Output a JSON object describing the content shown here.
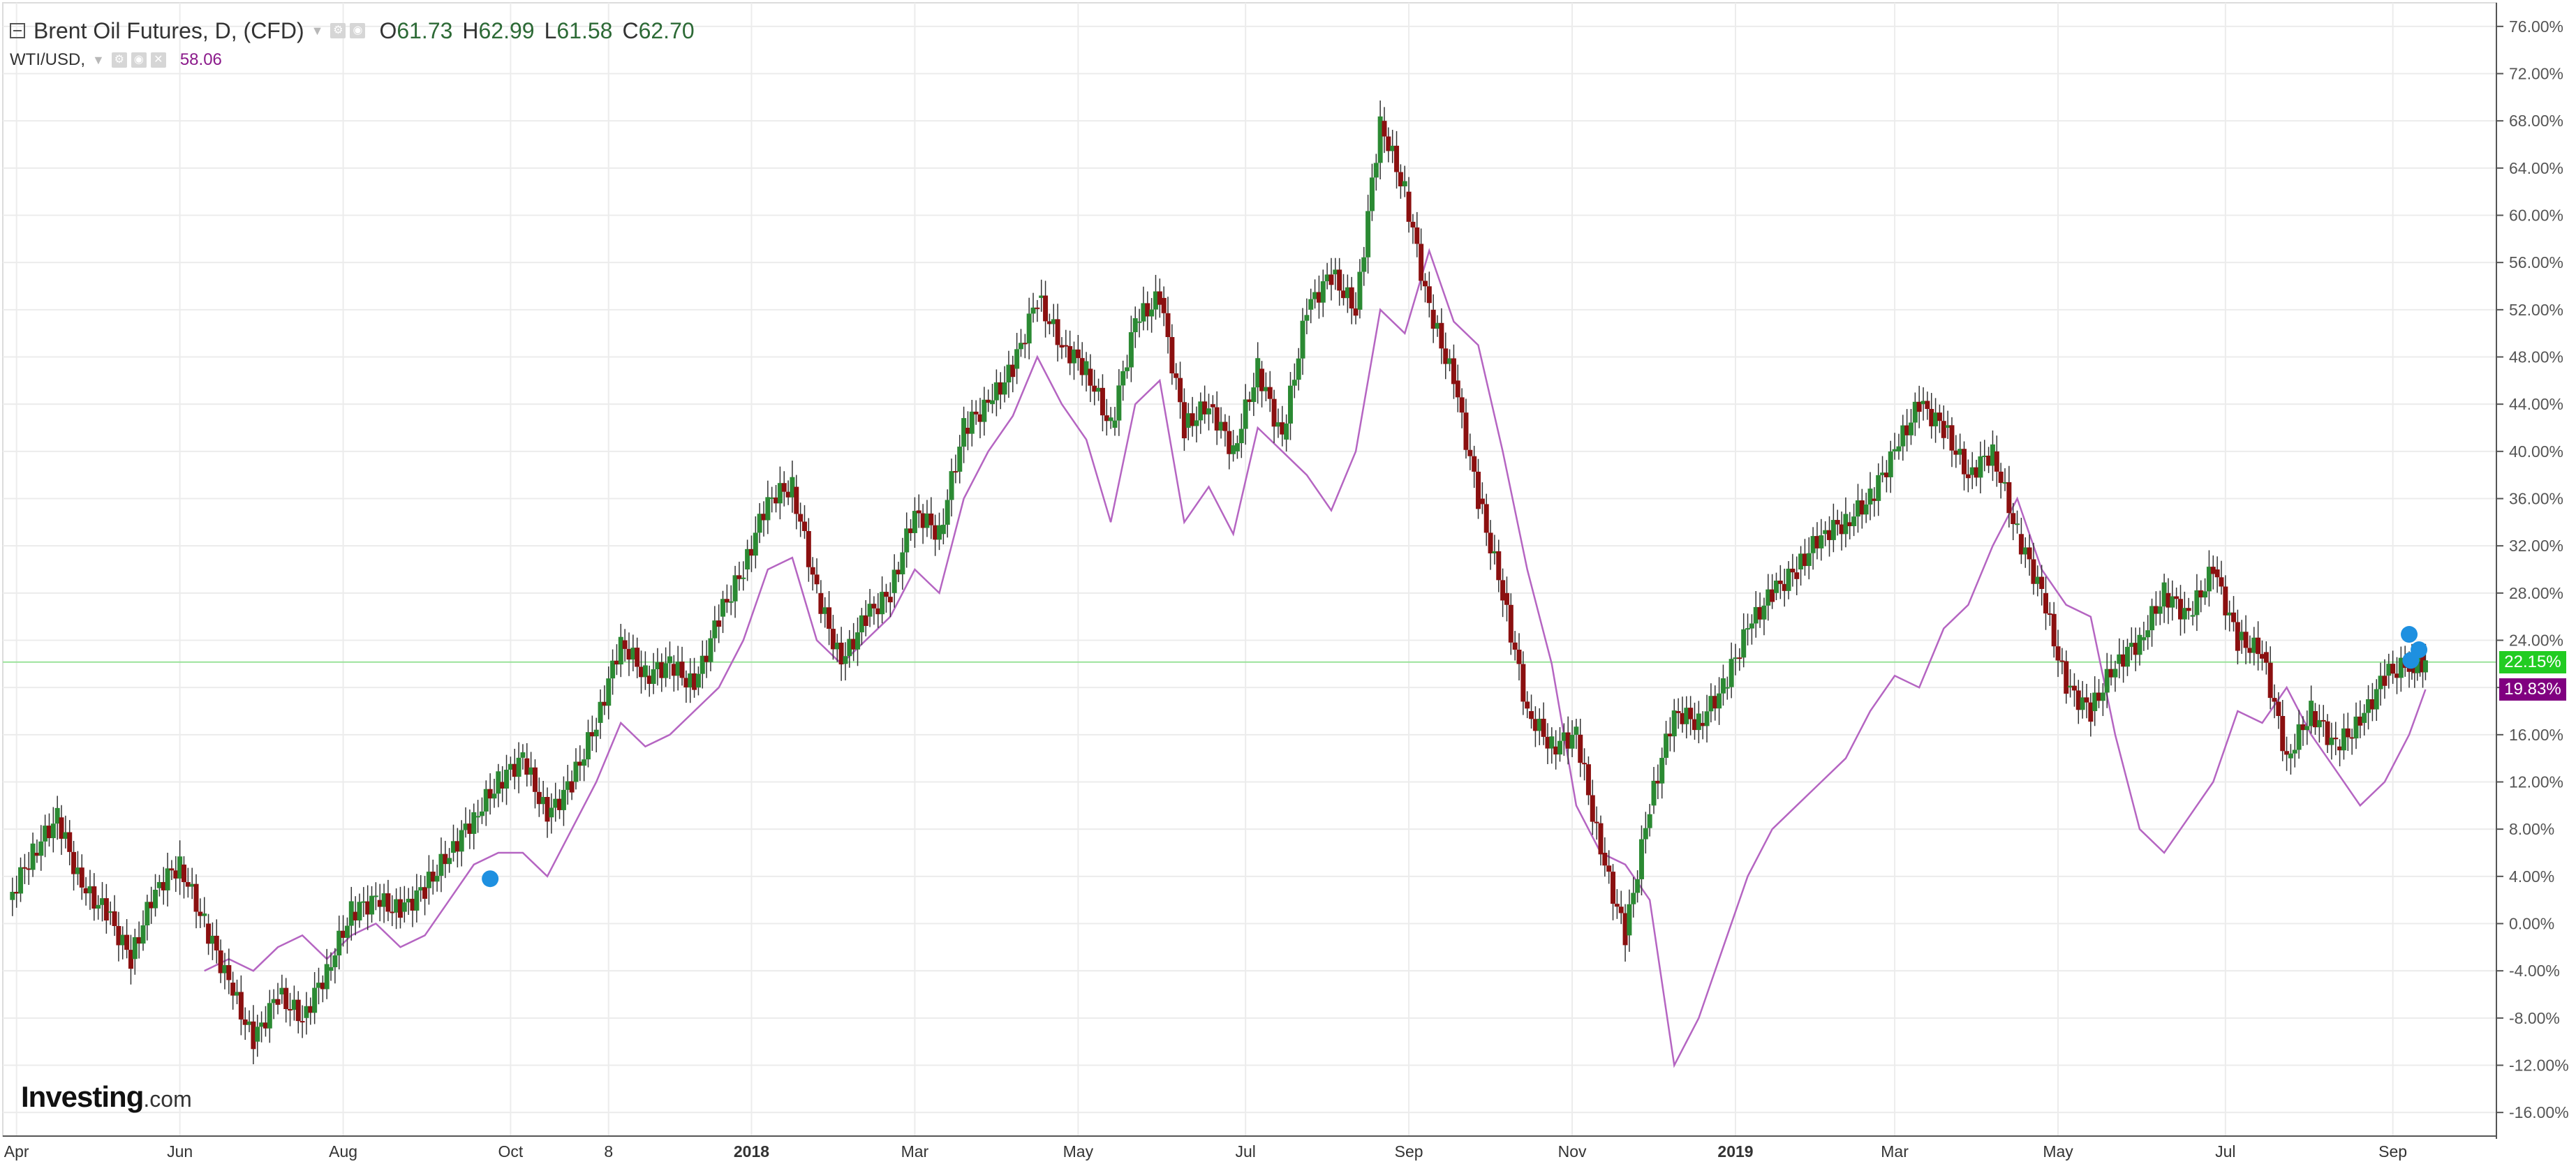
{
  "legend": {
    "main_title": "Brent Oil Futures, D, (CFD)",
    "open_label": "O",
    "open": "61.73",
    "high_label": "H",
    "high": "62.99",
    "low_label": "L",
    "low": "61.58",
    "close_label": "C",
    "close": "62.70",
    "compare_symbol": "WTI/USD,",
    "compare_value": "58.06"
  },
  "logo": {
    "name": "Investing",
    "suffix": ".com"
  },
  "price_tags": [
    {
      "text": "22.15%",
      "value": 22.15,
      "color": "#22cc22"
    },
    {
      "text": "19.83%",
      "value": 19.83,
      "color": "#800080"
    }
  ],
  "colors": {
    "up": "#2b8a33",
    "down": "#8b1010",
    "wti_line": "#b565c2",
    "grid": "#ececec",
    "crosshair": "#9ae29a",
    "marker": "#1e90e0"
  },
  "icons": [
    "collapse-icon",
    "settings-icon",
    "visibility-icon",
    "close-icon",
    "pivot-marker-icon"
  ],
  "chart_data": {
    "type": "line",
    "title": "Brent Oil Futures, D, (CFD)",
    "yunit": "%",
    "ylim": [
      -18,
      78
    ],
    "grid": true,
    "y_ticks": [
      "76.00%",
      "72.00%",
      "68.00%",
      "64.00%",
      "60.00%",
      "56.00%",
      "52.00%",
      "48.00%",
      "44.00%",
      "40.00%",
      "36.00%",
      "32.00%",
      "28.00%",
      "24.00%",
      "20.00%",
      "16.00%",
      "12.00%",
      "8.00%",
      "4.00%",
      "0.00%",
      "-4.00%",
      "-8.00%",
      "-12.00%",
      "-16.00%"
    ],
    "y_tick_values": [
      76,
      72,
      68,
      64,
      60,
      56,
      52,
      48,
      44,
      40,
      36,
      32,
      28,
      24,
      20,
      16,
      12,
      8,
      4,
      0,
      -4,
      -8,
      -12,
      -16
    ],
    "x_ticks": [
      {
        "label": "Apr",
        "t": 0.1,
        "bold": false
      },
      {
        "label": "Jun",
        "t": 2.1,
        "bold": false
      },
      {
        "label": "Aug",
        "t": 4.1,
        "bold": false
      },
      {
        "label": "Oct",
        "t": 6.15,
        "bold": false
      },
      {
        "label": "8",
        "t": 7.35,
        "bold": false
      },
      {
        "label": "2018",
        "t": 9.1,
        "bold": true
      },
      {
        "label": "Mar",
        "t": 11.1,
        "bold": false
      },
      {
        "label": "May",
        "t": 13.1,
        "bold": false
      },
      {
        "label": "Jul",
        "t": 15.15,
        "bold": false
      },
      {
        "label": "Sep",
        "t": 17.15,
        "bold": false
      },
      {
        "label": "Nov",
        "t": 19.15,
        "bold": false
      },
      {
        "label": "2019",
        "t": 21.15,
        "bold": true
      },
      {
        "label": "Mar",
        "t": 23.1,
        "bold": false
      },
      {
        "label": "May",
        "t": 25.1,
        "bold": false
      },
      {
        "label": "Jul",
        "t": 27.15,
        "bold": false
      },
      {
        "label": "Sep",
        "t": 29.2,
        "bold": false
      }
    ],
    "x_range": [
      0,
      30.4
    ],
    "series": [
      {
        "name": "Brent Oil Futures, D, (CFD)",
        "style": "candlestick",
        "x": [
          0,
          0.3,
          0.6,
          0.9,
          1.2,
          1.5,
          1.8,
          2.1,
          2.4,
          2.7,
          3.0,
          3.3,
          3.6,
          3.9,
          4.2,
          4.5,
          4.8,
          5.1,
          5.4,
          5.7,
          6.0,
          6.3,
          6.6,
          6.9,
          7.2,
          7.5,
          7.8,
          8.1,
          8.4,
          8.7,
          9.0,
          9.3,
          9.6,
          9.9,
          10.2,
          10.5,
          10.8,
          11.1,
          11.4,
          11.7,
          12.0,
          12.3,
          12.6,
          12.9,
          13.2,
          13.5,
          13.8,
          14.1,
          14.4,
          14.7,
          15.0,
          15.3,
          15.6,
          15.9,
          16.2,
          16.5,
          16.8,
          17.1,
          17.4,
          17.7,
          18.0,
          18.3,
          18.6,
          18.9,
          19.2,
          19.5,
          19.8,
          20.1,
          20.4,
          20.7,
          21.0,
          21.3,
          21.6,
          21.9,
          22.2,
          22.5,
          22.8,
          23.1,
          23.4,
          23.7,
          24.0,
          24.3,
          24.6,
          24.9,
          25.2,
          25.5,
          25.8,
          26.1,
          26.4,
          26.7,
          27.0,
          27.3,
          27.6,
          27.9,
          28.2,
          28.5,
          28.8,
          29.1,
          29.4,
          29.6
        ],
        "close": [
          2,
          6,
          9,
          3,
          1,
          -3,
          3,
          5,
          0,
          -5,
          -10,
          -6,
          -8,
          -4,
          1,
          2,
          1,
          3,
          6,
          9,
          12,
          14,
          9,
          12,
          17,
          24,
          21,
          22,
          20,
          26,
          30,
          36,
          37,
          28,
          22,
          26,
          28,
          35,
          33,
          42,
          44,
          47,
          53,
          49,
          47,
          42,
          51,
          53,
          42,
          44,
          40,
          47,
          41,
          52,
          55,
          52,
          68,
          62,
          52,
          46,
          36,
          28,
          18,
          15,
          16,
          6,
          -1,
          10,
          18,
          17,
          20,
          25,
          28,
          30,
          33,
          34,
          36,
          40,
          44,
          42,
          38,
          40,
          33,
          28,
          20,
          18,
          22,
          24,
          28,
          26,
          30,
          24,
          23,
          14,
          18,
          15,
          17,
          21,
          22,
          22.15
        ]
      },
      {
        "name": "WTI/USD,",
        "style": "line",
        "x": [
          2.4,
          2.7,
          3.0,
          3.3,
          3.6,
          3.9,
          4.2,
          4.5,
          4.8,
          5.1,
          5.4,
          5.7,
          6.0,
          6.3,
          6.6,
          6.9,
          7.2,
          7.5,
          7.8,
          8.1,
          8.4,
          8.7,
          9.0,
          9.3,
          9.6,
          9.9,
          10.2,
          10.5,
          10.8,
          11.1,
          11.4,
          11.7,
          12.0,
          12.3,
          12.6,
          12.9,
          13.2,
          13.5,
          13.8,
          14.1,
          14.4,
          14.7,
          15.0,
          15.3,
          15.6,
          15.9,
          16.2,
          16.5,
          16.8,
          17.1,
          17.4,
          17.7,
          18.0,
          18.3,
          18.6,
          18.9,
          19.2,
          19.5,
          19.8,
          20.1,
          20.4,
          20.7,
          21.0,
          21.3,
          21.6,
          21.9,
          22.2,
          22.5,
          22.8,
          23.1,
          23.4,
          23.7,
          24.0,
          24.3,
          24.6,
          24.9,
          25.2,
          25.5,
          25.8,
          26.1,
          26.4,
          26.7,
          27.0,
          27.3,
          27.6,
          27.9,
          28.2,
          28.5,
          28.8,
          29.1,
          29.4,
          29.6
        ],
        "values": [
          -4,
          -3,
          -4,
          -2,
          -1,
          -3,
          -1,
          0,
          -2,
          -1,
          2,
          5,
          6,
          6,
          4,
          8,
          12,
          17,
          15,
          16,
          18,
          20,
          24,
          30,
          31,
          24,
          22,
          24,
          26,
          30,
          28,
          36,
          40,
          43,
          48,
          44,
          41,
          34,
          44,
          46,
          34,
          37,
          33,
          42,
          40,
          38,
          35,
          40,
          52,
          50,
          57,
          51,
          49,
          40,
          30,
          22,
          10,
          6,
          5,
          2,
          -12,
          -8,
          -2,
          4,
          8,
          10,
          12,
          14,
          18,
          21,
          20,
          25,
          27,
          32,
          36,
          30,
          27,
          26,
          16,
          8,
          6,
          9,
          12,
          18,
          17,
          20,
          16,
          13,
          10,
          12,
          16,
          19.83
        ]
      }
    ]
  }
}
